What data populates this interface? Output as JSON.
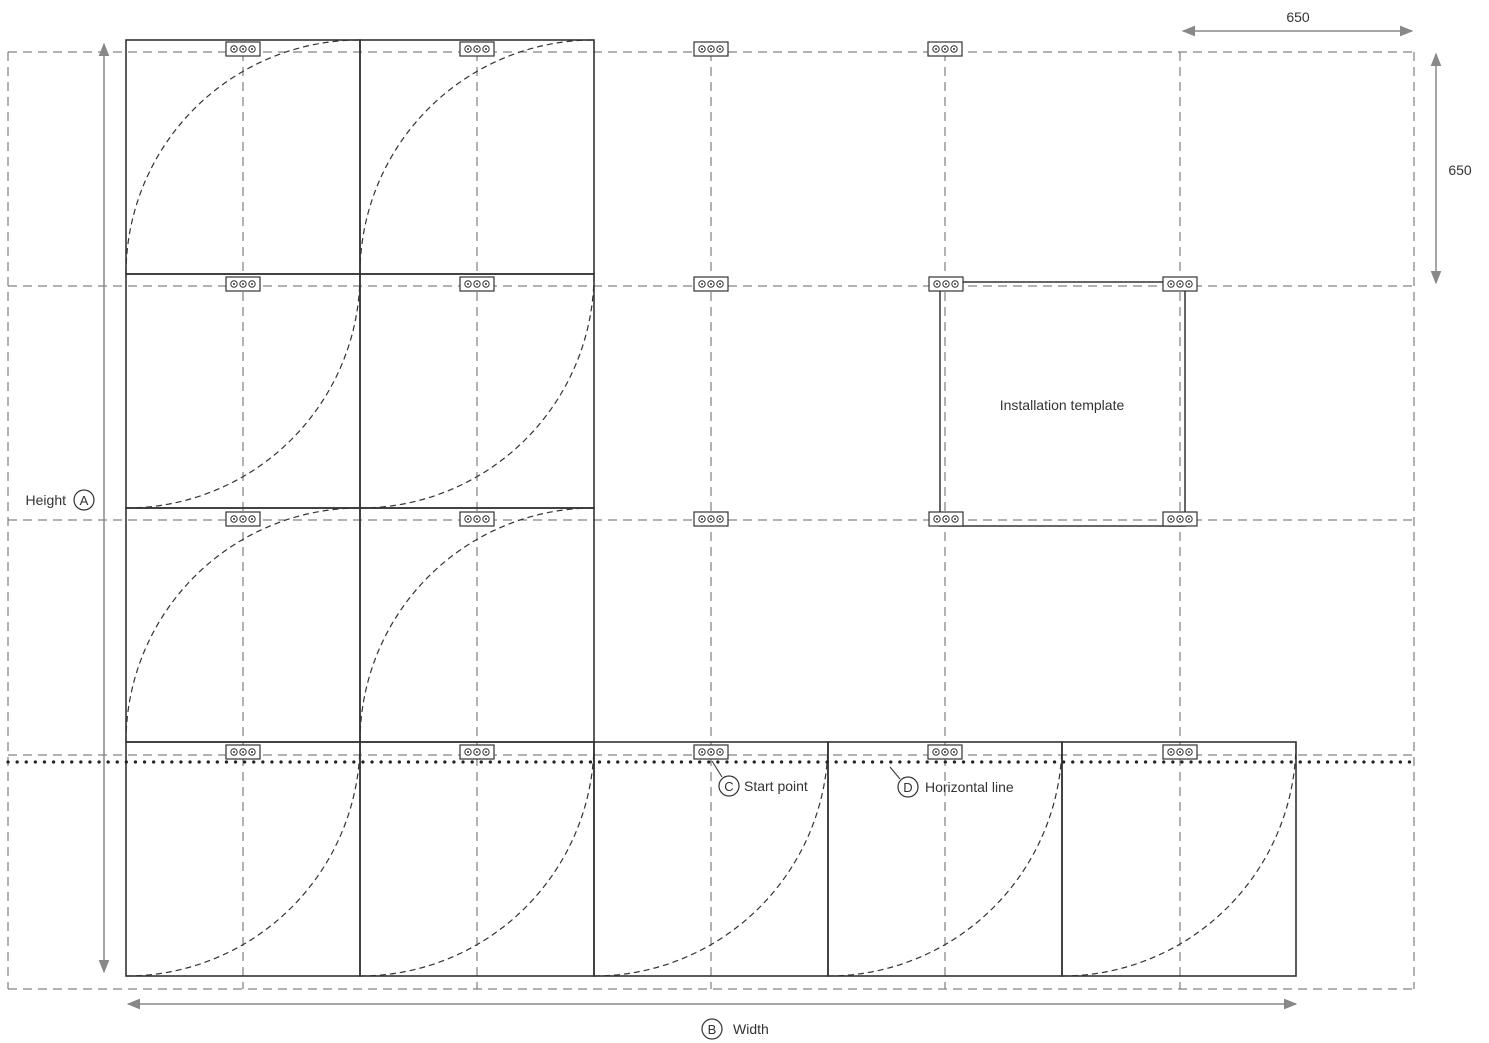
{
  "diagram": {
    "dimension_horizontal": "650",
    "dimension_vertical": "650",
    "height_label": "Height",
    "height_marker": "A",
    "width_label": "Width",
    "width_marker": "B",
    "start_point_marker": "C",
    "start_point_label": "Start point",
    "horizontal_line_marker": "D",
    "horizontal_line_label": "Horizontal line",
    "template_label": "Installation template"
  },
  "panels": [
    {
      "col": 0,
      "row": 0,
      "curve": "up"
    },
    {
      "col": 1,
      "row": 0,
      "curve": "up"
    },
    {
      "col": 0,
      "row": 1,
      "curve": "down"
    },
    {
      "col": 1,
      "row": 1,
      "curve": "down"
    },
    {
      "col": 0,
      "row": 2,
      "curve": "up"
    },
    {
      "col": 1,
      "row": 2,
      "curve": "up"
    },
    {
      "col": 0,
      "row": 3,
      "curve": "down"
    },
    {
      "col": 1,
      "row": 3,
      "curve": "down"
    },
    {
      "col": 2,
      "row": 3,
      "curve": "down"
    },
    {
      "col": 3,
      "row": 3,
      "curve": "down"
    },
    {
      "col": 4,
      "row": 3,
      "curve": "down"
    }
  ],
  "colors": {
    "line": "#333333",
    "grid": "#666666",
    "arrow": "#888888"
  }
}
